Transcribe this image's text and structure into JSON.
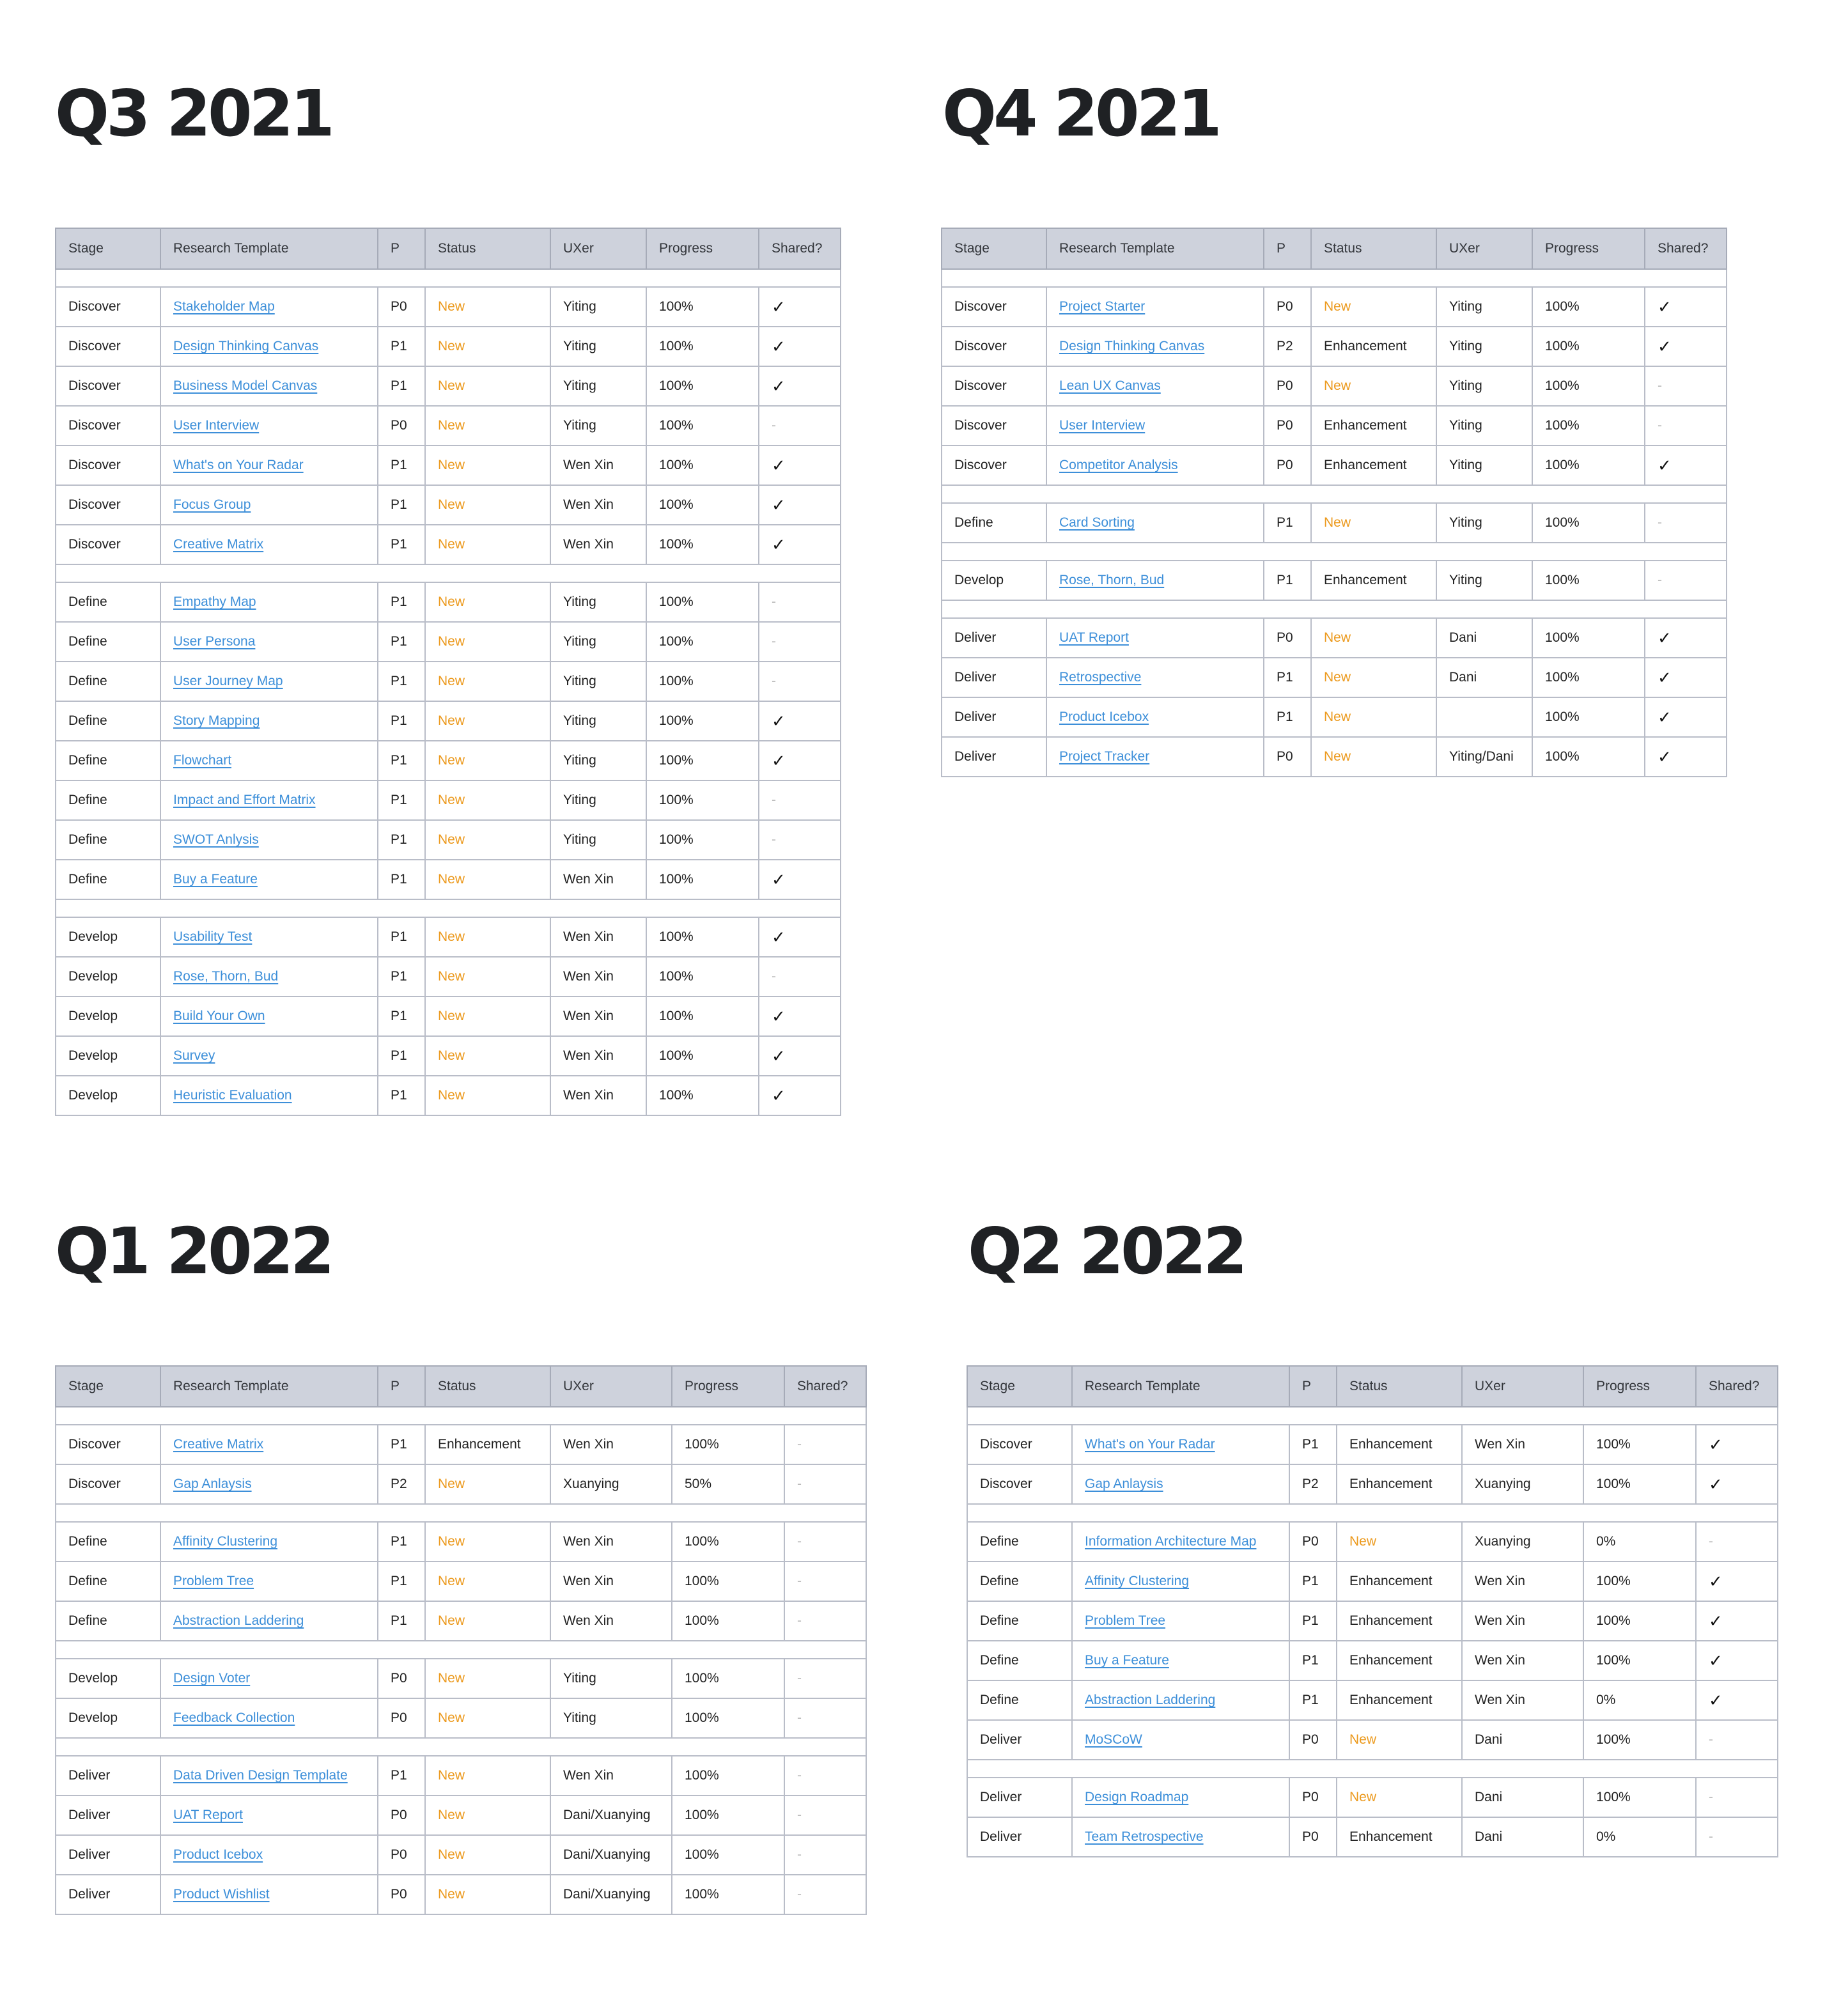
{
  "columns": [
    "Stage",
    "Research Template",
    "P",
    "Status",
    "UXer",
    "Progress",
    "Shared?"
  ],
  "shared_symbols": {
    "yes": "✓",
    "no": "-"
  },
  "quarters": [
    {
      "title": "Q3 2021",
      "groups": [
        [
          {
            "stage": "Discover",
            "template": "Stakeholder Map",
            "p": "P0",
            "status": "New",
            "uxer": "Yiting",
            "progress": "100%",
            "shared": true
          },
          {
            "stage": "Discover",
            "template": "Design Thinking Canvas",
            "p": "P1",
            "status": "New",
            "uxer": "Yiting",
            "progress": "100%",
            "shared": true
          },
          {
            "stage": "Discover",
            "template": "Business Model Canvas",
            "p": "P1",
            "status": "New",
            "uxer": "Yiting",
            "progress": "100%",
            "shared": true
          },
          {
            "stage": "Discover",
            "template": "User Interview",
            "p": "P0",
            "status": "New",
            "uxer": "Yiting",
            "progress": "100%",
            "shared": false
          },
          {
            "stage": "Discover",
            "template": "What's on Your Radar",
            "p": "P1",
            "status": "New",
            "uxer": "Wen Xin",
            "progress": "100%",
            "shared": true
          },
          {
            "stage": "Discover",
            "template": "Focus Group",
            "p": "P1",
            "status": "New",
            "uxer": "Wen Xin",
            "progress": "100%",
            "shared": true
          },
          {
            "stage": "Discover",
            "template": "Creative Matrix",
            "p": "P1",
            "status": "New",
            "uxer": "Wen Xin",
            "progress": "100%",
            "shared": true
          }
        ],
        [
          {
            "stage": "Define",
            "template": "Empathy Map",
            "p": "P1",
            "status": "New",
            "uxer": "Yiting",
            "progress": "100%",
            "shared": false
          },
          {
            "stage": "Define",
            "template": "User Persona",
            "p": "P1",
            "status": "New",
            "uxer": "Yiting",
            "progress": "100%",
            "shared": false
          },
          {
            "stage": "Define",
            "template": "User Journey Map",
            "p": "P1",
            "status": "New",
            "uxer": "Yiting",
            "progress": "100%",
            "shared": false
          },
          {
            "stage": "Define",
            "template": "Story Mapping",
            "p": "P1",
            "status": "New",
            "uxer": "Yiting",
            "progress": "100%",
            "shared": true
          },
          {
            "stage": "Define",
            "template": "Flowchart",
            "p": "P1",
            "status": "New",
            "uxer": "Yiting",
            "progress": "100%",
            "shared": true
          },
          {
            "stage": "Define",
            "template": "Impact and Effort Matrix",
            "p": "P1",
            "status": "New",
            "uxer": "Yiting",
            "progress": "100%",
            "shared": false
          },
          {
            "stage": "Define",
            "template": "SWOT Anlysis",
            "p": "P1",
            "status": "New",
            "uxer": "Yiting",
            "progress": "100%",
            "shared": false
          },
          {
            "stage": "Define",
            "template": "Buy a Feature",
            "p": "P1",
            "status": "New",
            "uxer": "Wen Xin",
            "progress": "100%",
            "shared": true
          }
        ],
        [
          {
            "stage": "Develop",
            "template": "Usability Test",
            "p": "P1",
            "status": "New",
            "uxer": "Wen Xin",
            "progress": "100%",
            "shared": true
          },
          {
            "stage": "Develop",
            "template": "Rose, Thorn, Bud",
            "p": "P1",
            "status": "New",
            "uxer": "Wen Xin",
            "progress": "100%",
            "shared": false
          },
          {
            "stage": "Develop",
            "template": "Build Your Own",
            "p": "P1",
            "status": "New",
            "uxer": "Wen Xin",
            "progress": "100%",
            "shared": true
          },
          {
            "stage": "Develop",
            "template": "Survey",
            "p": "P1",
            "status": "New",
            "uxer": "Wen Xin",
            "progress": "100%",
            "shared": true
          },
          {
            "stage": "Develop",
            "template": "Heuristic Evaluation",
            "p": "P1",
            "status": "New",
            "uxer": "Wen Xin",
            "progress": "100%",
            "shared": true
          }
        ]
      ]
    },
    {
      "title": "Q4 2021",
      "groups": [
        [
          {
            "stage": "Discover",
            "template": "Project Starter",
            "p": "P0",
            "status": "New",
            "uxer": "Yiting",
            "progress": "100%",
            "shared": true
          },
          {
            "stage": "Discover",
            "template": "Design Thinking Canvas",
            "p": "P2",
            "status": "Enhancement",
            "uxer": "Yiting",
            "progress": "100%",
            "shared": true
          },
          {
            "stage": "Discover",
            "template": "Lean UX Canvas",
            "p": "P0",
            "status": "New",
            "uxer": "Yiting",
            "progress": "100%",
            "shared": false
          },
          {
            "stage": "Discover",
            "template": "User Interview",
            "p": "P0",
            "status": "Enhancement",
            "uxer": "Yiting",
            "progress": "100%",
            "shared": false
          },
          {
            "stage": "Discover",
            "template": "Competitor Analysis",
            "p": "P0",
            "status": "Enhancement",
            "uxer": "Yiting",
            "progress": "100%",
            "shared": true
          }
        ],
        [
          {
            "stage": "Define",
            "template": "Card Sorting",
            "p": "P1",
            "status": "New",
            "uxer": "Yiting",
            "progress": "100%",
            "shared": false
          }
        ],
        [
          {
            "stage": "Develop",
            "template": "Rose, Thorn, Bud",
            "p": "P1",
            "status": "Enhancement",
            "uxer": "Yiting",
            "progress": "100%",
            "shared": false
          }
        ],
        [
          {
            "stage": "Deliver",
            "template": "UAT Report",
            "p": "P0",
            "status": "New",
            "uxer": "Dani",
            "progress": "100%",
            "shared": true
          },
          {
            "stage": "Deliver",
            "template": "Retrospective",
            "p": "P1",
            "status": "New",
            "uxer": "Dani",
            "progress": "100%",
            "shared": true
          },
          {
            "stage": "Deliver",
            "template": "Product Icebox",
            "p": "P1",
            "status": "New",
            "uxer": "",
            "progress": "100%",
            "shared": true
          },
          {
            "stage": "Deliver",
            "template": "Project Tracker",
            "p": "P0",
            "status": "New",
            "uxer": "Yiting/Dani",
            "progress": "100%",
            "shared": true
          }
        ]
      ]
    },
    {
      "title": "Q1 2022",
      "groups": [
        [
          {
            "stage": "Discover",
            "template": "Creative Matrix",
            "p": "P1",
            "status": "Enhancement",
            "uxer": "Wen Xin",
            "progress": "100%",
            "shared": false
          },
          {
            "stage": "Discover",
            "template": "Gap Anlaysis",
            "p": "P2",
            "status": "New",
            "uxer": "Xuanying",
            "progress": "50%",
            "shared": false
          }
        ],
        [
          {
            "stage": "Define",
            "template": "Affinity Clustering",
            "p": "P1",
            "status": "New",
            "uxer": "Wen Xin",
            "progress": "100%",
            "shared": false
          },
          {
            "stage": "Define",
            "template": "Problem Tree",
            "p": "P1",
            "status": "New",
            "uxer": "Wen Xin",
            "progress": "100%",
            "shared": false
          },
          {
            "stage": "Define",
            "template": "Abstraction Laddering",
            "p": "P1",
            "status": "New",
            "uxer": "Wen Xin",
            "progress": "100%",
            "shared": false
          }
        ],
        [
          {
            "stage": "Develop",
            "template": "Design Voter",
            "p": "P0",
            "status": "New",
            "uxer": "Yiting",
            "progress": "100%",
            "shared": false
          },
          {
            "stage": "Develop",
            "template": "Feedback Collection",
            "p": "P0",
            "status": "New",
            "uxer": "Yiting",
            "progress": "100%",
            "shared": false
          }
        ],
        [
          {
            "stage": "Deliver",
            "template": "Data Driven Design Template",
            "p": "P1",
            "status": "New",
            "uxer": "Wen Xin",
            "progress": "100%",
            "shared": false
          },
          {
            "stage": "Deliver",
            "template": "UAT Report",
            "p": "P0",
            "status": "New",
            "uxer": "Dani/Xuanying",
            "progress": "100%",
            "shared": false
          },
          {
            "stage": "Deliver",
            "template": "Product Icebox",
            "p": "P0",
            "status": "New",
            "uxer": "Dani/Xuanying",
            "progress": "100%",
            "shared": false
          },
          {
            "stage": "Deliver",
            "template": "Product Wishlist",
            "p": "P0",
            "status": "New",
            "uxer": "Dani/Xuanying",
            "progress": "100%",
            "shared": false
          }
        ]
      ]
    },
    {
      "title": "Q2 2022",
      "groups": [
        [
          {
            "stage": "Discover",
            "template": "What's on Your Radar",
            "p": "P1",
            "status": "Enhancement",
            "uxer": "Wen Xin",
            "progress": "100%",
            "shared": true
          },
          {
            "stage": "Discover",
            "template": "Gap Anlaysis",
            "p": "P2",
            "status": "Enhancement",
            "uxer": "Xuanying",
            "progress": "100%",
            "shared": true
          }
        ],
        [
          {
            "stage": "Define",
            "template": "Information Architecture Map",
            "p": "P0",
            "status": "New",
            "uxer": "Xuanying",
            "progress": "0%",
            "shared": false
          },
          {
            "stage": "Define",
            "template": "Affinity Clustering",
            "p": "P1",
            "status": "Enhancement",
            "uxer": "Wen Xin",
            "progress": "100%",
            "shared": true
          },
          {
            "stage": "Define",
            "template": "Problem Tree",
            "p": "P1",
            "status": "Enhancement",
            "uxer": "Wen Xin",
            "progress": "100%",
            "shared": true
          },
          {
            "stage": "Define",
            "template": "Buy a Feature",
            "p": "P1",
            "status": "Enhancement",
            "uxer": "Wen Xin",
            "progress": "100%",
            "shared": true
          },
          {
            "stage": "Define",
            "template": "Abstraction Laddering",
            "p": "P1",
            "status": "Enhancement",
            "uxer": "Wen Xin",
            "progress": "0%",
            "shared": true
          },
          {
            "stage": "Deliver",
            "template": "MoSCoW",
            "p": "P0",
            "status": "New",
            "uxer": "Dani",
            "progress": "100%",
            "shared": false
          }
        ],
        [
          {
            "stage": "Deliver",
            "template": "Design Roadmap",
            "p": "P0",
            "status": "New",
            "uxer": "Dani",
            "progress": "100%",
            "shared": false
          },
          {
            "stage": "Deliver",
            "template": "Team Retrospective",
            "p": "P0",
            "status": "Enhancement",
            "uxer": "Dani",
            "progress": "0%",
            "shared": false
          }
        ]
      ]
    }
  ]
}
